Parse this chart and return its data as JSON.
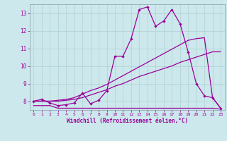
{
  "bg_color": "#cce8ec",
  "line_color": "#990099",
  "grid_color": "#b0d0d4",
  "xlabel": "Windchill (Refroidissement éolien,°C)",
  "ylim": [
    7.5,
    13.5
  ],
  "xlim": [
    -0.5,
    23.5
  ],
  "yticks": [
    8,
    9,
    10,
    11,
    12,
    13
  ],
  "xticks": [
    0,
    1,
    2,
    3,
    4,
    5,
    6,
    7,
    8,
    9,
    10,
    11,
    12,
    13,
    14,
    15,
    16,
    17,
    18,
    19,
    20,
    21,
    22,
    23
  ],
  "line_zigzag_x": [
    0,
    1,
    2,
    3,
    4,
    5,
    6,
    7,
    8,
    9,
    10,
    11,
    12,
    13,
    14,
    15,
    16,
    17,
    18,
    19,
    20,
    21,
    22,
    23
  ],
  "line_zigzag_y": [
    8.0,
    8.1,
    7.9,
    7.75,
    7.8,
    7.9,
    8.45,
    7.85,
    8.05,
    8.6,
    10.55,
    10.55,
    11.55,
    13.2,
    13.35,
    12.25,
    12.55,
    13.2,
    12.4,
    10.8,
    9.0,
    8.3,
    8.2,
    7.6
  ],
  "line_flat_x": [
    0,
    1,
    2,
    3,
    4,
    5,
    6,
    7,
    8,
    9,
    10,
    11,
    12,
    13,
    14,
    15,
    16,
    17,
    18,
    19,
    20,
    21,
    22,
    23
  ],
  "line_flat_y": [
    7.75,
    7.75,
    7.75,
    7.6,
    7.6,
    7.6,
    7.6,
    7.6,
    7.6,
    7.6,
    7.6,
    7.6,
    7.6,
    7.6,
    7.6,
    7.6,
    7.6,
    7.6,
    7.6,
    7.6,
    7.6,
    7.6,
    7.6,
    7.55
  ],
  "line_lower_x": [
    0,
    1,
    2,
    3,
    4,
    5,
    6,
    7,
    8,
    9,
    10,
    11,
    12,
    13,
    14,
    15,
    16,
    17,
    18,
    19,
    20,
    21,
    22,
    23
  ],
  "line_lower_y": [
    8.0,
    8.0,
    8.0,
    8.0,
    8.05,
    8.1,
    8.2,
    8.35,
    8.5,
    8.65,
    8.85,
    9.0,
    9.2,
    9.4,
    9.55,
    9.7,
    9.85,
    10.0,
    10.2,
    10.35,
    10.5,
    10.65,
    10.8,
    10.8
  ],
  "line_upper_x": [
    0,
    1,
    2,
    3,
    4,
    5,
    6,
    7,
    8,
    9,
    10,
    11,
    12,
    13,
    14,
    15,
    16,
    17,
    18,
    19,
    20,
    21,
    22,
    23
  ],
  "line_upper_y": [
    8.0,
    8.0,
    8.0,
    8.05,
    8.1,
    8.2,
    8.4,
    8.6,
    8.75,
    8.95,
    9.2,
    9.45,
    9.7,
    9.95,
    10.2,
    10.45,
    10.7,
    10.95,
    11.2,
    11.45,
    11.55,
    11.6,
    8.2,
    7.6
  ]
}
